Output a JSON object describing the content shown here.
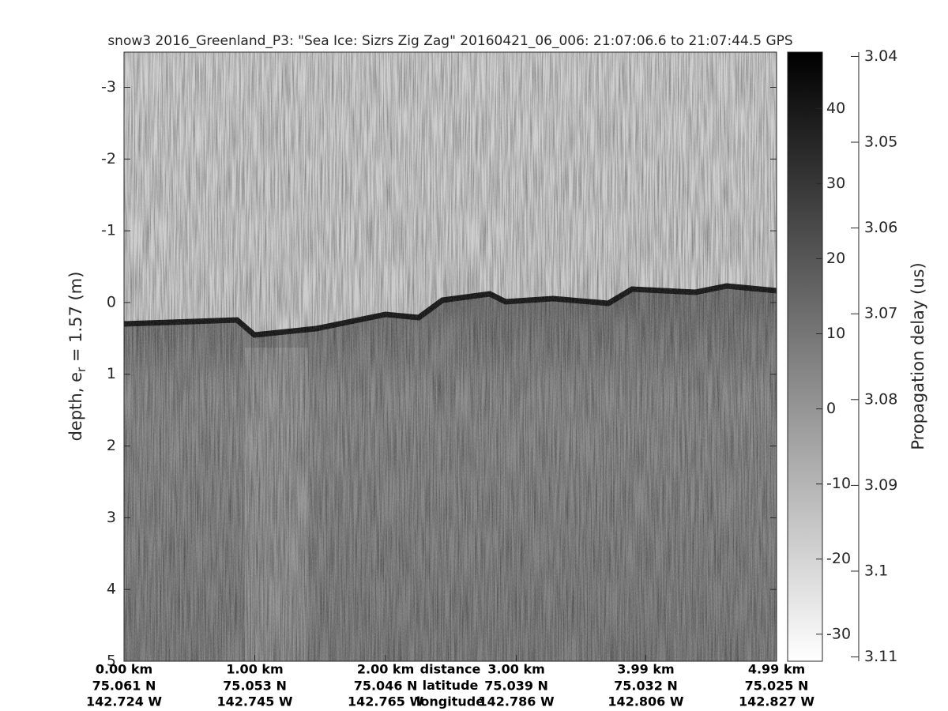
{
  "chart_data": {
    "type": "echogram",
    "title": "snow3 2016_Greenland_P3: \"Sea Ice: Sizrs Zig Zag\"  20160421_06_006: 21:07:06.6 to 21:07:44.5 GPS",
    "ylabel_parts": [
      "depth, e",
      "r",
      " = 1.57 (m)"
    ],
    "ylim": [
      -3.49,
      5
    ],
    "yticks": [
      -3,
      -2,
      -1,
      0,
      1,
      2,
      3,
      4,
      5
    ],
    "xlim": [
      0,
      4.99
    ],
    "xticks": [
      {
        "value": 0,
        "label": "0.00 km"
      },
      {
        "value": 1,
        "label": "1.00 km"
      },
      {
        "value": 2,
        "label": "2.00 km"
      },
      {
        "value": 3,
        "label": "3.00 km"
      },
      {
        "value": 3.99,
        "label": "3.99 km"
      },
      {
        "value": 4.99,
        "label": "4.99 km"
      }
    ],
    "latitudes": [
      "75.061 N",
      "75.053 N",
      "75.046 N",
      "75.039 N",
      "75.032 N",
      "75.025 N"
    ],
    "longitudes": [
      "142.724 W",
      "142.745 W",
      "142.765 W",
      "142.786 W",
      "142.806 W",
      "142.827 W"
    ],
    "xlabel_rows": [
      "distance",
      "latitude",
      "longitude"
    ],
    "clim": [
      -33.6,
      47.5
    ],
    "cticks": [
      -30,
      -20,
      -10,
      0,
      10,
      20,
      30,
      40
    ],
    "y2label": "Propagation delay (us)",
    "y2lim": [
      3.0395,
      3.1105
    ],
    "y2ticks": [
      3.04,
      3.05,
      3.06,
      3.07,
      3.08,
      3.09,
      3.1,
      3.11
    ],
    "colormap": [
      "#000000",
      "#ffffff"
    ]
  }
}
